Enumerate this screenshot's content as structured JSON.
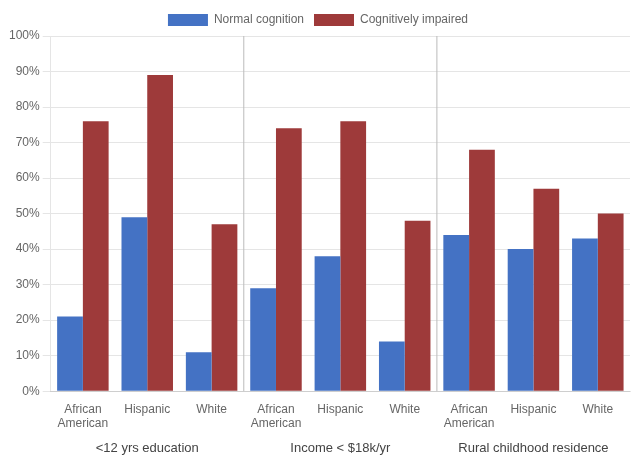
{
  "chart_data": {
    "type": "bar",
    "categories": [
      "African\nAmerican",
      "Hispanic",
      "White",
      "African\nAmerican",
      "Hispanic",
      "White",
      "African\nAmerican",
      "Hispanic",
      "White"
    ],
    "series": [
      {
        "name": "Normal cognition",
        "color": "#4472C4",
        "values": [
          21,
          49,
          11,
          29,
          38,
          14,
          44,
          40,
          43
        ]
      },
      {
        "name": "Cognitively impaired",
        "color": "#9E3A3A",
        "values": [
          76,
          89,
          47,
          74,
          76,
          48,
          68,
          57,
          50
        ]
      }
    ],
    "annotations": [
      "<12 yrs education",
      "Income < $18k/yr",
      "Rural childhood residence"
    ],
    "ylim": [
      0,
      100
    ],
    "yticks": [
      {
        "value": 0,
        "label": "0%"
      },
      {
        "value": 10,
        "label": "10%"
      },
      {
        "value": 20,
        "label": "20%"
      },
      {
        "value": 30,
        "label": "30%"
      },
      {
        "value": 40,
        "label": "40%"
      },
      {
        "value": 50,
        "label": "50%"
      },
      {
        "value": 60,
        "label": "60%"
      },
      {
        "value": 70,
        "label": "70%"
      },
      {
        "value": 80,
        "label": "80%"
      },
      {
        "value": 90,
        "label": "90%"
      },
      {
        "value": 100,
        "label": "100%"
      }
    ],
    "grid": true,
    "legend": "top"
  }
}
